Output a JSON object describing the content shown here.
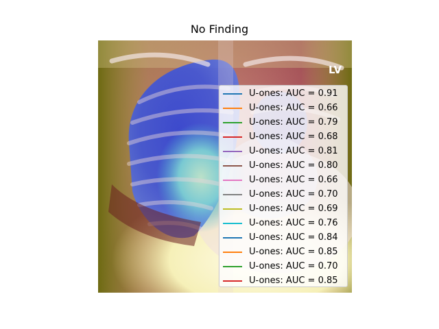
{
  "title": "No Finding",
  "image": {
    "icon": "chest-xray-heatmap-image",
    "marker_text": "LV"
  },
  "legend": {
    "placement": "upper-right",
    "entries": [
      {
        "label": "U-ones: AUC = 0.91",
        "color": "#1f77b4"
      },
      {
        "label": "U-ones: AUC = 0.66",
        "color": "#ff7f0e"
      },
      {
        "label": "U-ones: AUC = 0.79",
        "color": "#2ca02c"
      },
      {
        "label": "U-ones: AUC = 0.68",
        "color": "#d62728"
      },
      {
        "label": "U-ones: AUC = 0.81",
        "color": "#9467bd"
      },
      {
        "label": "U-ones: AUC = 0.80",
        "color": "#8c564b"
      },
      {
        "label": "U-ones: AUC = 0.66",
        "color": "#e377c2"
      },
      {
        "label": "U-ones: AUC = 0.70",
        "color": "#7f7f7f"
      },
      {
        "label": "U-ones: AUC = 0.69",
        "color": "#bcbd22"
      },
      {
        "label": "U-ones: AUC = 0.76",
        "color": "#17becf"
      },
      {
        "label": "U-ones: AUC = 0.84",
        "color": "#1f77b4"
      },
      {
        "label": "U-ones: AUC = 0.85",
        "color": "#ff7f0e"
      },
      {
        "label": "U-ones: AUC = 0.70",
        "color": "#2ca02c"
      },
      {
        "label": "U-ones: AUC = 0.85",
        "color": "#d62728"
      }
    ]
  }
}
